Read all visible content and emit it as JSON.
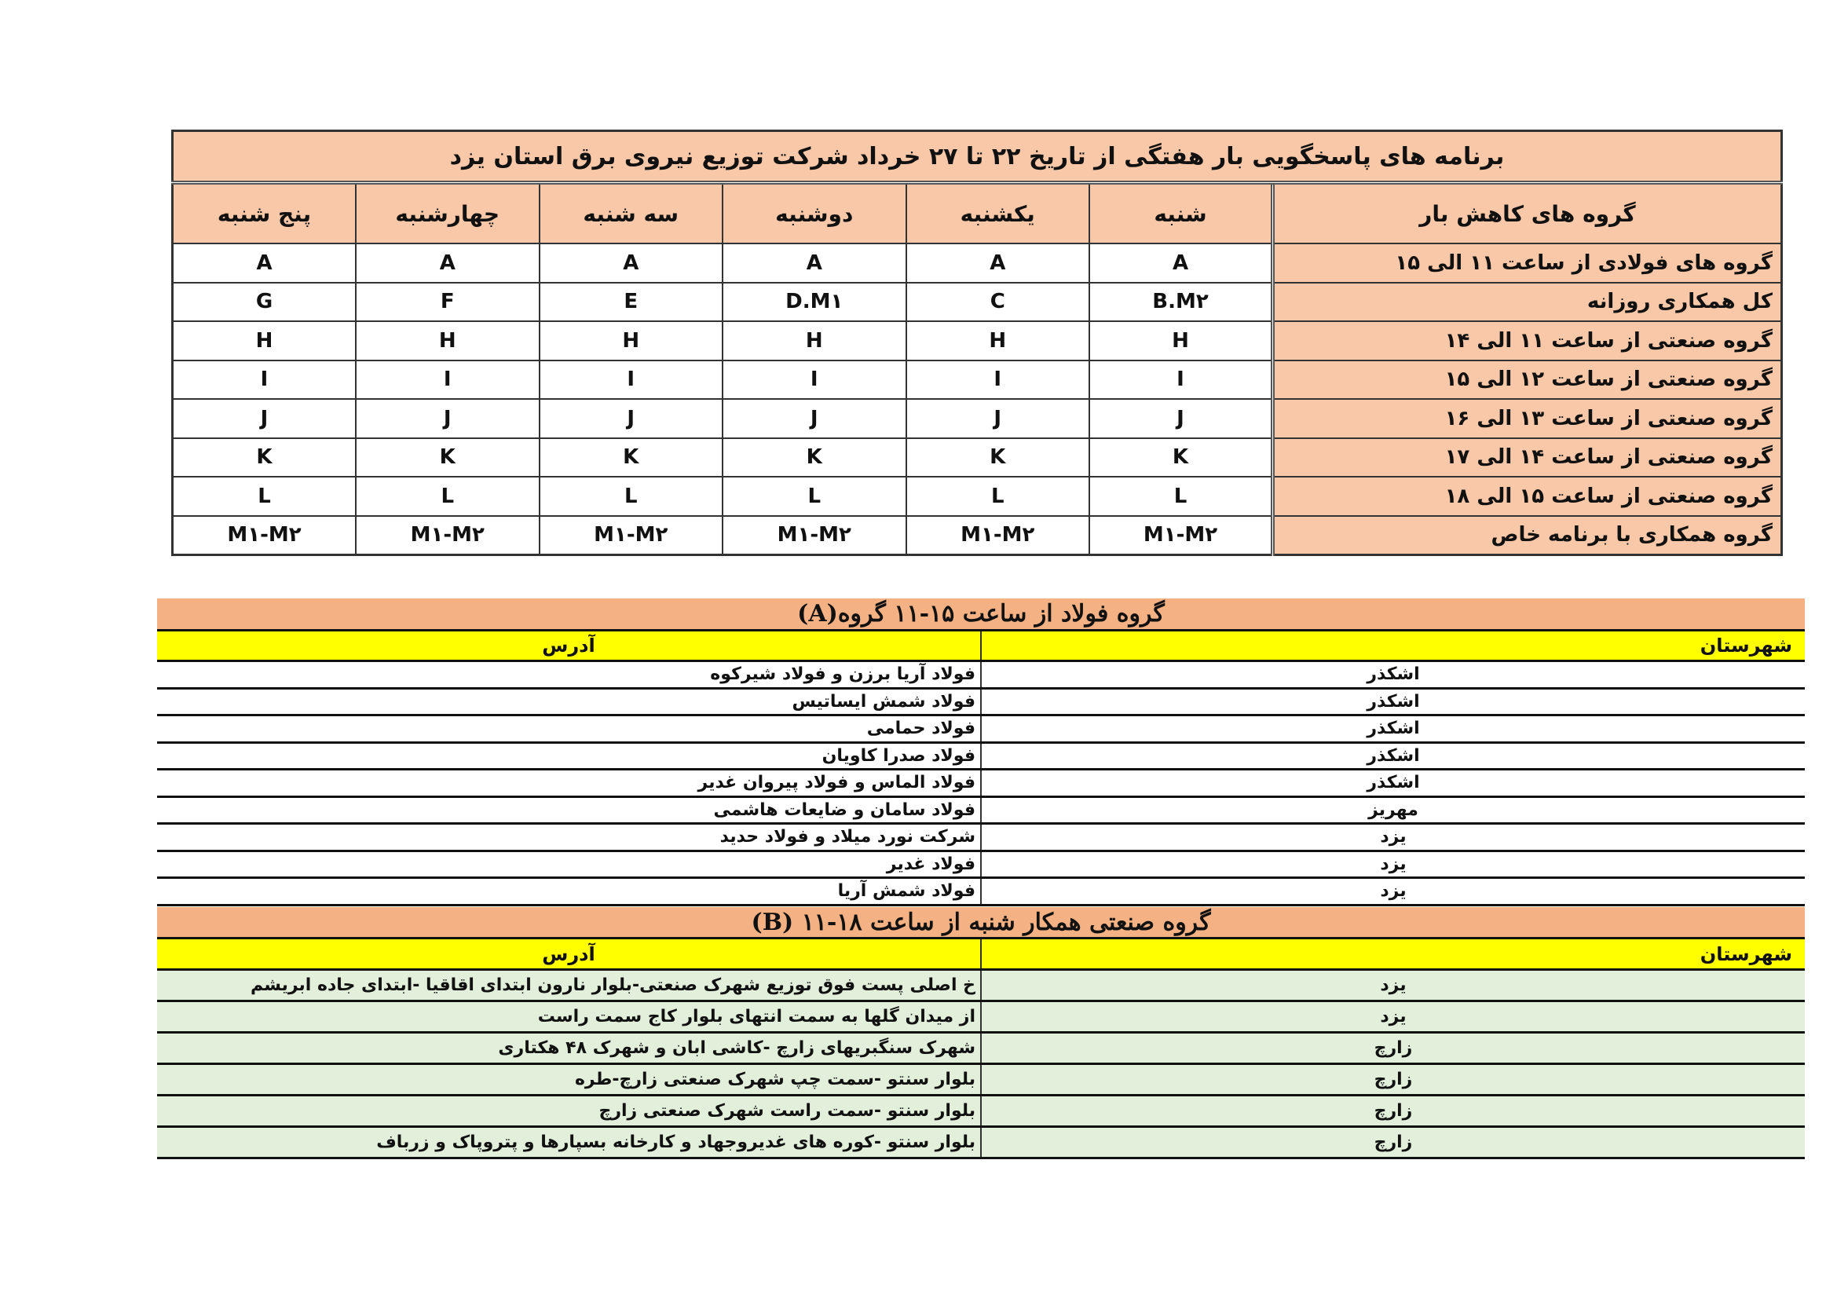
{
  "schedule": {
    "title": "برنامه های  پاسخگویی بار هفتگی از تاریخ ۲۲ تا ۲۷ خرداد شرکت توزیع نیروی برق استان یزد",
    "group_header": "گروه های  کاهش بار",
    "days": [
      "شنبه",
      "یکشنبه",
      "دوشنبه",
      "سه شنبه",
      "چهارشنبه",
      "پنج شنبه"
    ],
    "rows": [
      {
        "label": "گروه های فولادی از ساعت ۱۱ الی ۱۵",
        "values": [
          "A",
          "A",
          "A",
          "A",
          "A",
          "A"
        ]
      },
      {
        "label": "کل همکاری روزانه",
        "values": [
          "B.M۲",
          "C",
          "D.M۱",
          "E",
          "F",
          "G"
        ]
      },
      {
        "label": "گروه صنعتی از ساعت ۱۱ الی ۱۴",
        "values": [
          "H",
          "H",
          "H",
          "H",
          "H",
          "H"
        ]
      },
      {
        "label": "گروه صنعتی از ساعت  ۱۲ الی ۱۵",
        "values": [
          "I",
          "I",
          "I",
          "I",
          "I",
          "I"
        ]
      },
      {
        "label": "گروه صنعتی از ساعت  ۱۳ الی ۱۶",
        "values": [
          "J",
          "J",
          "J",
          "J",
          "J",
          "J"
        ]
      },
      {
        "label": "گروه صنعتی از ساعت ۱۴ الی ۱۷",
        "values": [
          "K",
          "K",
          "K",
          "K",
          "K",
          "K"
        ]
      },
      {
        "label": "گروه صنعتی از ساعت ۱۵ الی ۱۸",
        "values": [
          "L",
          "L",
          "L",
          "L",
          "L",
          "L"
        ]
      },
      {
        "label": "گروه  همکاری با برنامه خاص",
        "values": [
          "M۱-M۲",
          "M۱-M۲",
          "M۱-M۲",
          "M۱-M۲",
          "M۱-M۲",
          "M۱-M۲"
        ]
      }
    ]
  },
  "section_a": {
    "title": "گروه فولاد  از ساعت ۱۵-۱۱ گروه(A)",
    "city_header": "شهرستان",
    "address_header": "آدرس",
    "rows": [
      {
        "city": "اشکذر",
        "address": "فولاد آریا برزن و فولاد شیرکوه"
      },
      {
        "city": "اشکذر",
        "address": "فولاد شمش ایساتیس"
      },
      {
        "city": "اشکذر",
        "address": "فولاد حمامی"
      },
      {
        "city": "اشکذر",
        "address": "فولاد صدرا کاویان"
      },
      {
        "city": "اشکذر",
        "address": "فولاد الماس و فولاد پیروان غدیر"
      },
      {
        "city": "مهریز",
        "address": "فولاد سامان و ضایعات هاشمی"
      },
      {
        "city": "یزد",
        "address": "شرکت نورد میلاد و فولاد حدید"
      },
      {
        "city": "یزد",
        "address": "فولاد غدیر"
      },
      {
        "city": "یزد",
        "address": "فولاد شمش آریا"
      }
    ]
  },
  "section_b": {
    "title": "گروه صنعتی همکار شنبه  از ساعت ۱۸-۱۱ (B)",
    "city_header": "شهرستان",
    "address_header": "آدرس",
    "rows": [
      {
        "city": "یزد",
        "address": "خ اصلی پست فوق توزیع شهرک صنعتی-بلوار نارون ابتدای اقاقیا -ابتدای جاده ابریشم"
      },
      {
        "city": "یزد",
        "address": "از میدان گلها به سمت انتهای بلوار کاج سمت راست"
      },
      {
        "city": "زارچ",
        "address": "شهرک سنگبریهای زارچ -کاشی  ابان  و شهرک ۴۸ هکتاری"
      },
      {
        "city": "زارچ",
        "address": "بلوار سنتو -سمت چپ شهرک صنعتی زارچ-طره"
      },
      {
        "city": "زارچ",
        "address": "بلوار سنتو -سمت راست شهرک صنعتی زارچ"
      },
      {
        "city": "زارچ",
        "address": "بلوار سنتو -کوره های غدیروجهاد و کارخانه بسپارها و پتروپاک و زرباف"
      }
    ]
  },
  "colors": {
    "header_peach": "#f8c8a8",
    "section_orange": "#f4b183",
    "yellow": "#ffff00",
    "green_rows": "#e2efda"
  }
}
